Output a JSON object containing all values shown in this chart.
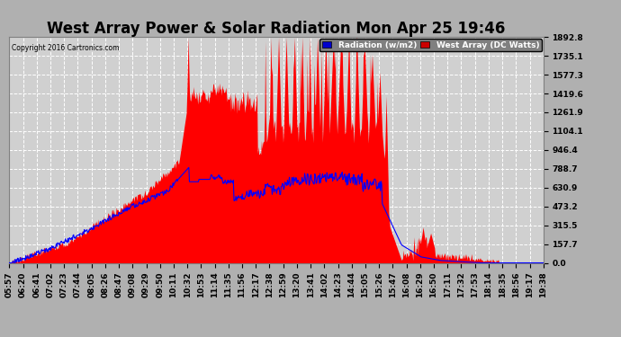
{
  "title": "West Array Power & Solar Radiation Mon Apr 25 19:46",
  "copyright": "Copyright 2016 Cartronics.com",
  "legend_labels": [
    "Radiation (w/m2)",
    "West Array (DC Watts)"
  ],
  "bg_color": "#b0b0b0",
  "plot_bg_color": "#d0d0d0",
  "grid_color": "#ffffff",
  "y_ticks": [
    0.0,
    157.7,
    315.5,
    473.2,
    630.9,
    788.7,
    946.4,
    1104.1,
    1261.9,
    1419.6,
    1577.3,
    1735.1,
    1892.8
  ],
  "ymax": 1892.8,
  "ymin": 0.0,
  "x_tick_labels": [
    "05:57",
    "06:20",
    "06:41",
    "07:02",
    "07:23",
    "07:44",
    "08:05",
    "08:26",
    "08:47",
    "09:08",
    "09:29",
    "09:50",
    "10:11",
    "10:32",
    "10:53",
    "11:14",
    "11:35",
    "11:56",
    "12:17",
    "12:38",
    "12:59",
    "13:20",
    "13:41",
    "14:02",
    "14:23",
    "14:44",
    "15:05",
    "15:26",
    "15:47",
    "16:08",
    "16:29",
    "16:50",
    "17:11",
    "17:32",
    "17:53",
    "18:14",
    "18:35",
    "18:56",
    "19:17",
    "19:38"
  ],
  "title_fontsize": 12,
  "tick_fontsize": 6.5,
  "red_color": "#ff0000",
  "blue_color": "#0000ff",
  "blue_legend_bg": "#0000cc",
  "red_legend_bg": "#cc0000"
}
